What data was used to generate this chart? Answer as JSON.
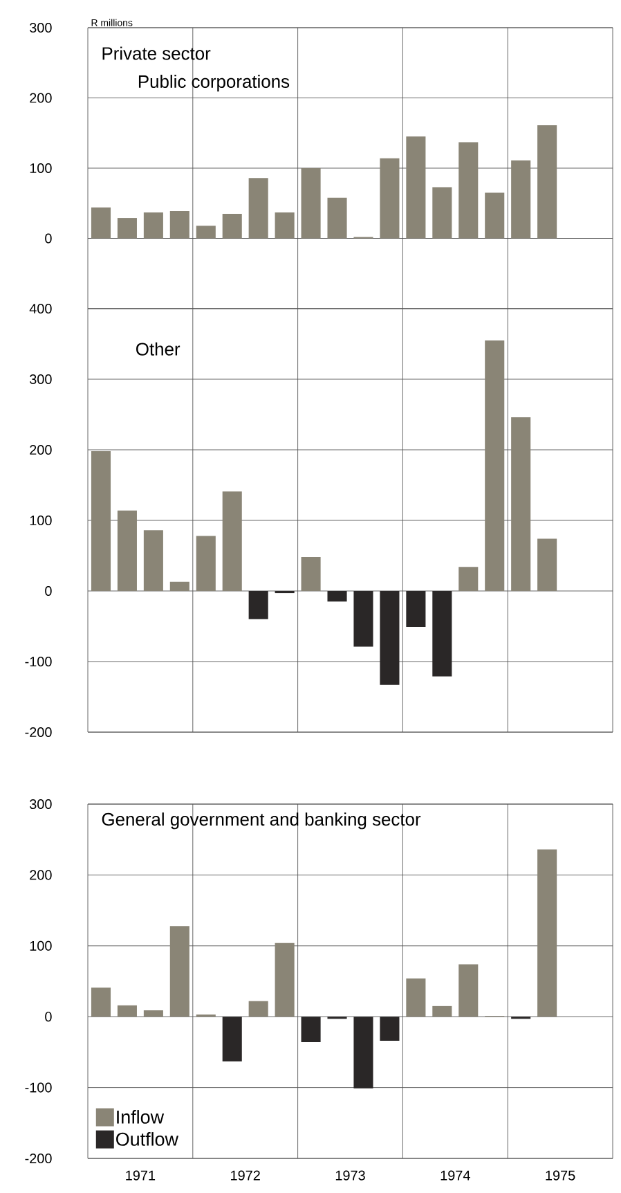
{
  "chart_data": [
    {
      "type": "bar",
      "title": "Public corporations",
      "ylabel": "R millions",
      "annotations": [
        "Private sector"
      ],
      "x": [
        1971.125,
        1971.375,
        1971.625,
        1971.875,
        1972.125,
        1972.375,
        1972.625,
        1972.875,
        1973.125,
        1973.375,
        1973.625,
        1973.875,
        1974.125,
        1974.375,
        1974.625,
        1974.875,
        1975.125,
        1975.375
      ],
      "series": [
        {
          "color": "#8a8576",
          "values": [
            44,
            29,
            37,
            39,
            18,
            35,
            86,
            37,
            100,
            58,
            2,
            114,
            145,
            73,
            137,
            65,
            111,
            161
          ]
        }
      ],
      "xlim": [
        1971,
        1976
      ],
      "xticks": [
        {
          "value": 1972,
          "label": null
        },
        {
          "value": 1973,
          "label": null
        },
        {
          "value": 1974,
          "label": null
        },
        {
          "value": 1975,
          "label": null
        }
      ],
      "ylim": [
        -100,
        300
      ],
      "yticks": [
        0,
        100,
        200,
        300
      ],
      "grid": true,
      "tick_labels": "y"
    },
    {
      "type": "bar",
      "title": "Other",
      "x": [
        1971.125,
        1971.375,
        1971.625,
        1971.875,
        1972.125,
        1972.375,
        1972.625,
        1972.875,
        1973.125,
        1973.375,
        1973.625,
        1973.875,
        1974.125,
        1974.375,
        1974.625,
        1974.875,
        1975.125,
        1975.375
      ],
      "series": [
        {
          "color": "#8a8576",
          "values": [
            198,
            114,
            86,
            13,
            78,
            141,
            null,
            null,
            48,
            null,
            null,
            null,
            null,
            null,
            34,
            355,
            246,
            74
          ]
        },
        {
          "color": "#2a2727",
          "values": [
            null,
            null,
            null,
            null,
            null,
            null,
            -40,
            -3,
            null,
            -15,
            -79,
            -133,
            -51,
            -121,
            null,
            null,
            null,
            null
          ]
        }
      ],
      "xlim": [
        1971,
        1976
      ],
      "xticks": [
        {
          "value": 1972,
          "label": null
        },
        {
          "value": 1973,
          "label": null
        },
        {
          "value": 1974,
          "label": null
        },
        {
          "value": 1975,
          "label": null
        }
      ],
      "ylim": [
        -200,
        400
      ],
      "yticks": [
        -200,
        -100,
        0,
        100,
        200,
        300,
        400
      ],
      "grid": true,
      "tick_labels": "y"
    },
    {
      "type": "bar",
      "title": "General government and banking sector",
      "x": [
        1971.125,
        1971.375,
        1971.625,
        1971.875,
        1972.125,
        1972.375,
        1972.625,
        1972.875,
        1973.125,
        1973.375,
        1973.625,
        1973.875,
        1974.125,
        1974.375,
        1974.625,
        1974.875,
        1975.125,
        1975.375
      ],
      "series": [
        {
          "name": "Inflow",
          "color": "#8a8576",
          "values": [
            41,
            16,
            9,
            128,
            3,
            null,
            22,
            104,
            null,
            null,
            null,
            null,
            54,
            15,
            74,
            1,
            null,
            236
          ]
        },
        {
          "name": "Outflow",
          "color": "#2a2727",
          "values": [
            null,
            null,
            null,
            null,
            null,
            -63,
            null,
            null,
            -36,
            -3,
            -101,
            -34,
            null,
            null,
            null,
            null,
            -3,
            null
          ]
        }
      ],
      "xlim": [
        1971,
        1976
      ],
      "xticks": [
        {
          "value": 1971.5,
          "label": "1971"
        },
        {
          "value": 1972,
          "label": null
        },
        {
          "value": 1972.5,
          "label": "1972"
        },
        {
          "value": 1973,
          "label": null
        },
        {
          "value": 1973.5,
          "label": "1973"
        },
        {
          "value": 1974,
          "label": null
        },
        {
          "value": 1974.5,
          "label": "1974"
        },
        {
          "value": 1975,
          "label": null
        },
        {
          "value": 1975.5,
          "label": "1975"
        }
      ],
      "ylim": [
        -200,
        300
      ],
      "yticks": [
        -200,
        -100,
        0,
        100,
        200,
        300
      ],
      "grid": true,
      "legend": "bottom left"
    }
  ]
}
